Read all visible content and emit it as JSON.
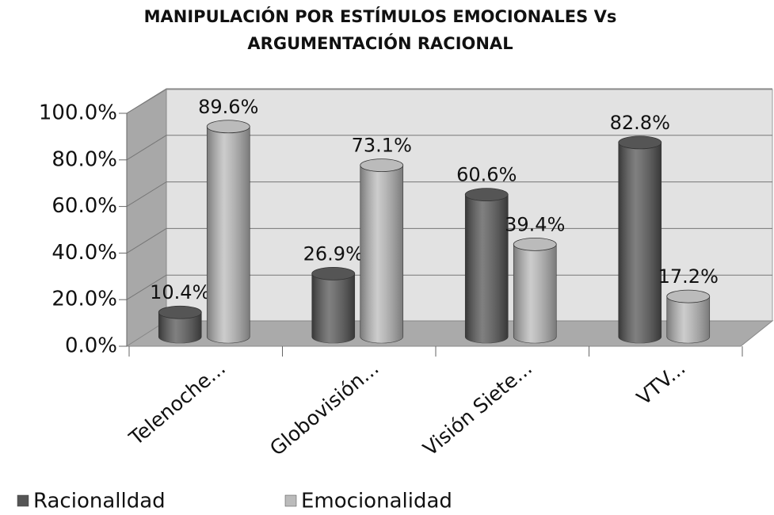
{
  "chart_data": {
    "type": "bar3d",
    "title": [
      "MANIPULACIÓN POR ESTÍMULOS EMOCIONALES Vs",
      "ARGUMENTACIÓN RACIONAL"
    ],
    "categories": [
      "Telenoche...",
      "Globovisión...",
      "Visión Siete...",
      "VTV..."
    ],
    "series": [
      {
        "name": "Racionalldad",
        "color": "#555555",
        "values": [
          10.4,
          26.9,
          60.6,
          82.8
        ],
        "value_labels": [
          "10.4%",
          "26.9%",
          "60.6%",
          "82.8%"
        ]
      },
      {
        "name": "Emocionalidad",
        "color": "#bbbbbb",
        "values": [
          89.6,
          73.1,
          39.4,
          17.2
        ],
        "value_labels": [
          "89.6%",
          "73.1%",
          "39.4%",
          "17.2%"
        ]
      }
    ],
    "ylim": [
      0,
      100
    ],
    "yticks": [
      {
        "value": 0,
        "label": "0.0%"
      },
      {
        "value": 20,
        "label": "20.0%"
      },
      {
        "value": 40,
        "label": "40.0%"
      },
      {
        "value": 60,
        "label": "60.0%"
      },
      {
        "value": 80,
        "label": "80.0%"
      },
      {
        "value": 100,
        "label": "100.0%"
      }
    ],
    "grid": true,
    "legend": "bottom"
  }
}
